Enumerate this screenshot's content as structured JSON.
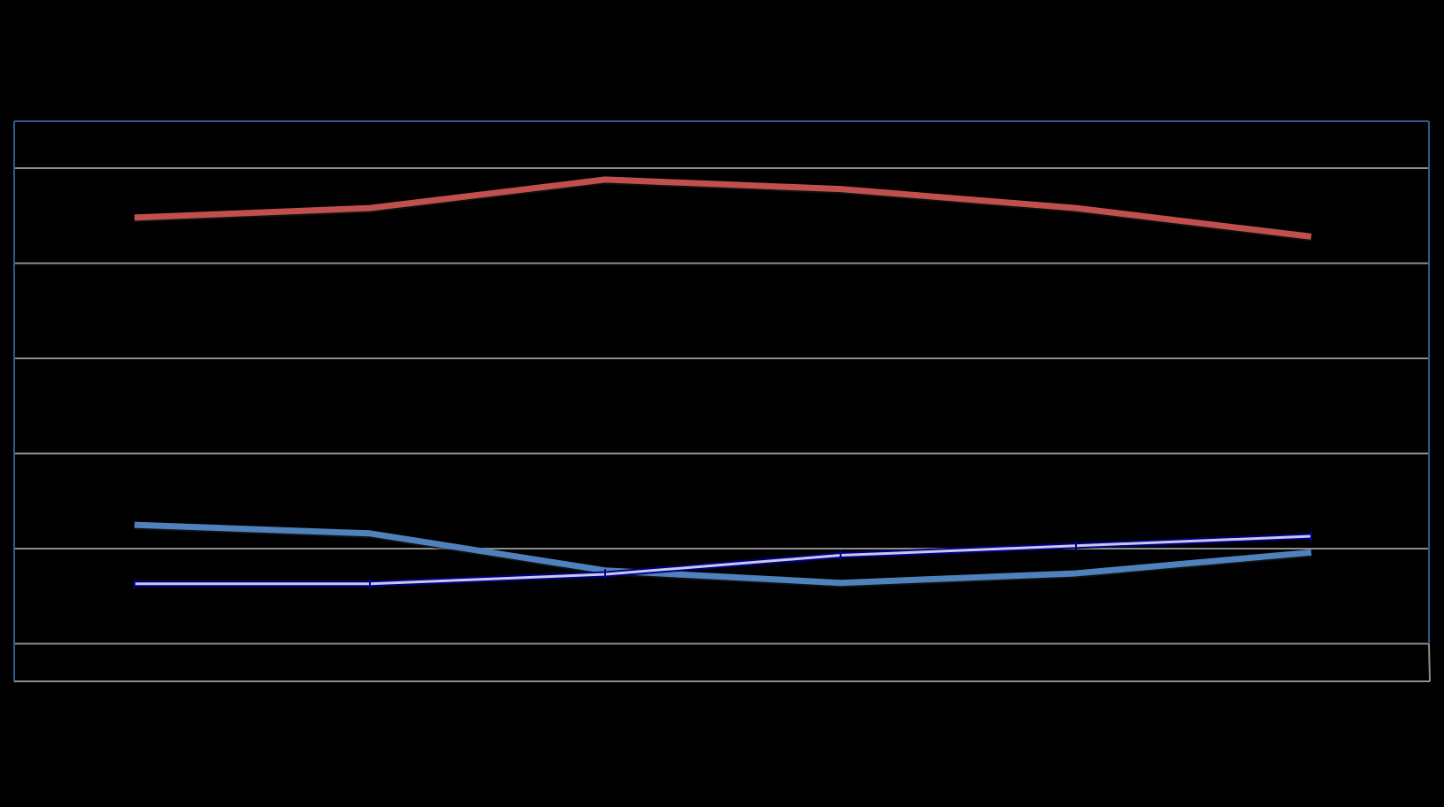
{
  "chart_data": {
    "type": "line",
    "title": "",
    "xlabel": "",
    "ylabel": "",
    "categories": [
      "",
      "",
      "",
      "",
      "",
      ""
    ],
    "ylim": [
      -0.4,
      5.0
    ],
    "grid": true,
    "legend": "none",
    "series": [
      {
        "values": [
          4.48,
          4.58,
          4.88,
          4.78,
          4.58,
          4.28
        ],
        "color": "#c0504d",
        "style": "thick"
      },
      {
        "values": [
          1.25,
          1.16,
          0.77,
          0.64,
          0.74,
          0.96
        ],
        "color": "#4f81bd",
        "style": "thick"
      },
      {
        "values": [
          0.63,
          0.63,
          0.73,
          0.93,
          1.03,
          1.13
        ],
        "color": "#c8c8e8",
        "style": "thin-with-markers"
      }
    ]
  }
}
